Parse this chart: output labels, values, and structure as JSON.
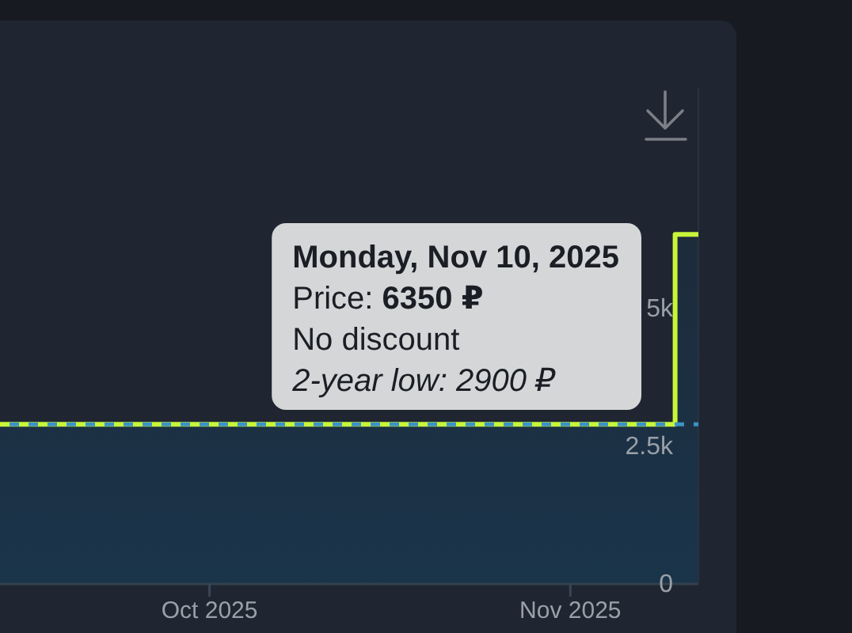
{
  "chart_data": {
    "type": "step",
    "x": [
      "2025-09-13",
      "2025-11-10",
      "2025-11-10",
      "2025-11-12"
    ],
    "values": [
      2900,
      2900,
      6350,
      6350
    ],
    "color": "#c8f53a",
    "xlim": [
      "2025-09-13",
      "2025-11-12"
    ],
    "xticks": [
      {
        "value": "2025-10-01",
        "label": "Oct 2025"
      },
      {
        "value": "2025-11-01",
        "label": "Nov 2025"
      }
    ],
    "ylim": [
      0,
      9000
    ],
    "yticks": [
      0,
      {
        "value": 2500,
        "label": "2.5k"
      },
      {
        "value": 5000,
        "label": "5k"
      }
    ],
    "ref_lines": [
      {
        "axis": "y",
        "value": 2900,
        "color": "#3b93c4",
        "line_style": "dashed"
      }
    ],
    "annotations": [
      "Monday, Nov 10, 2025\nPrice: 6350 ₽\nNo discount\n2-year low: 2900 ₽"
    ]
  }
}
